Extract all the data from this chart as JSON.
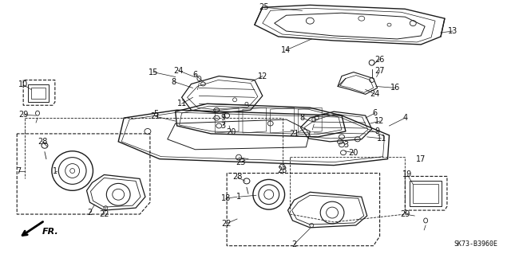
{
  "bg_color": "#ffffff",
  "diagram_code": "SK73-B3960E",
  "fig_width": 6.4,
  "fig_height": 3.19,
  "dpi": 100,
  "line_color": "#1a1a1a",
  "text_color": "#111111",
  "font_size": 7.0
}
